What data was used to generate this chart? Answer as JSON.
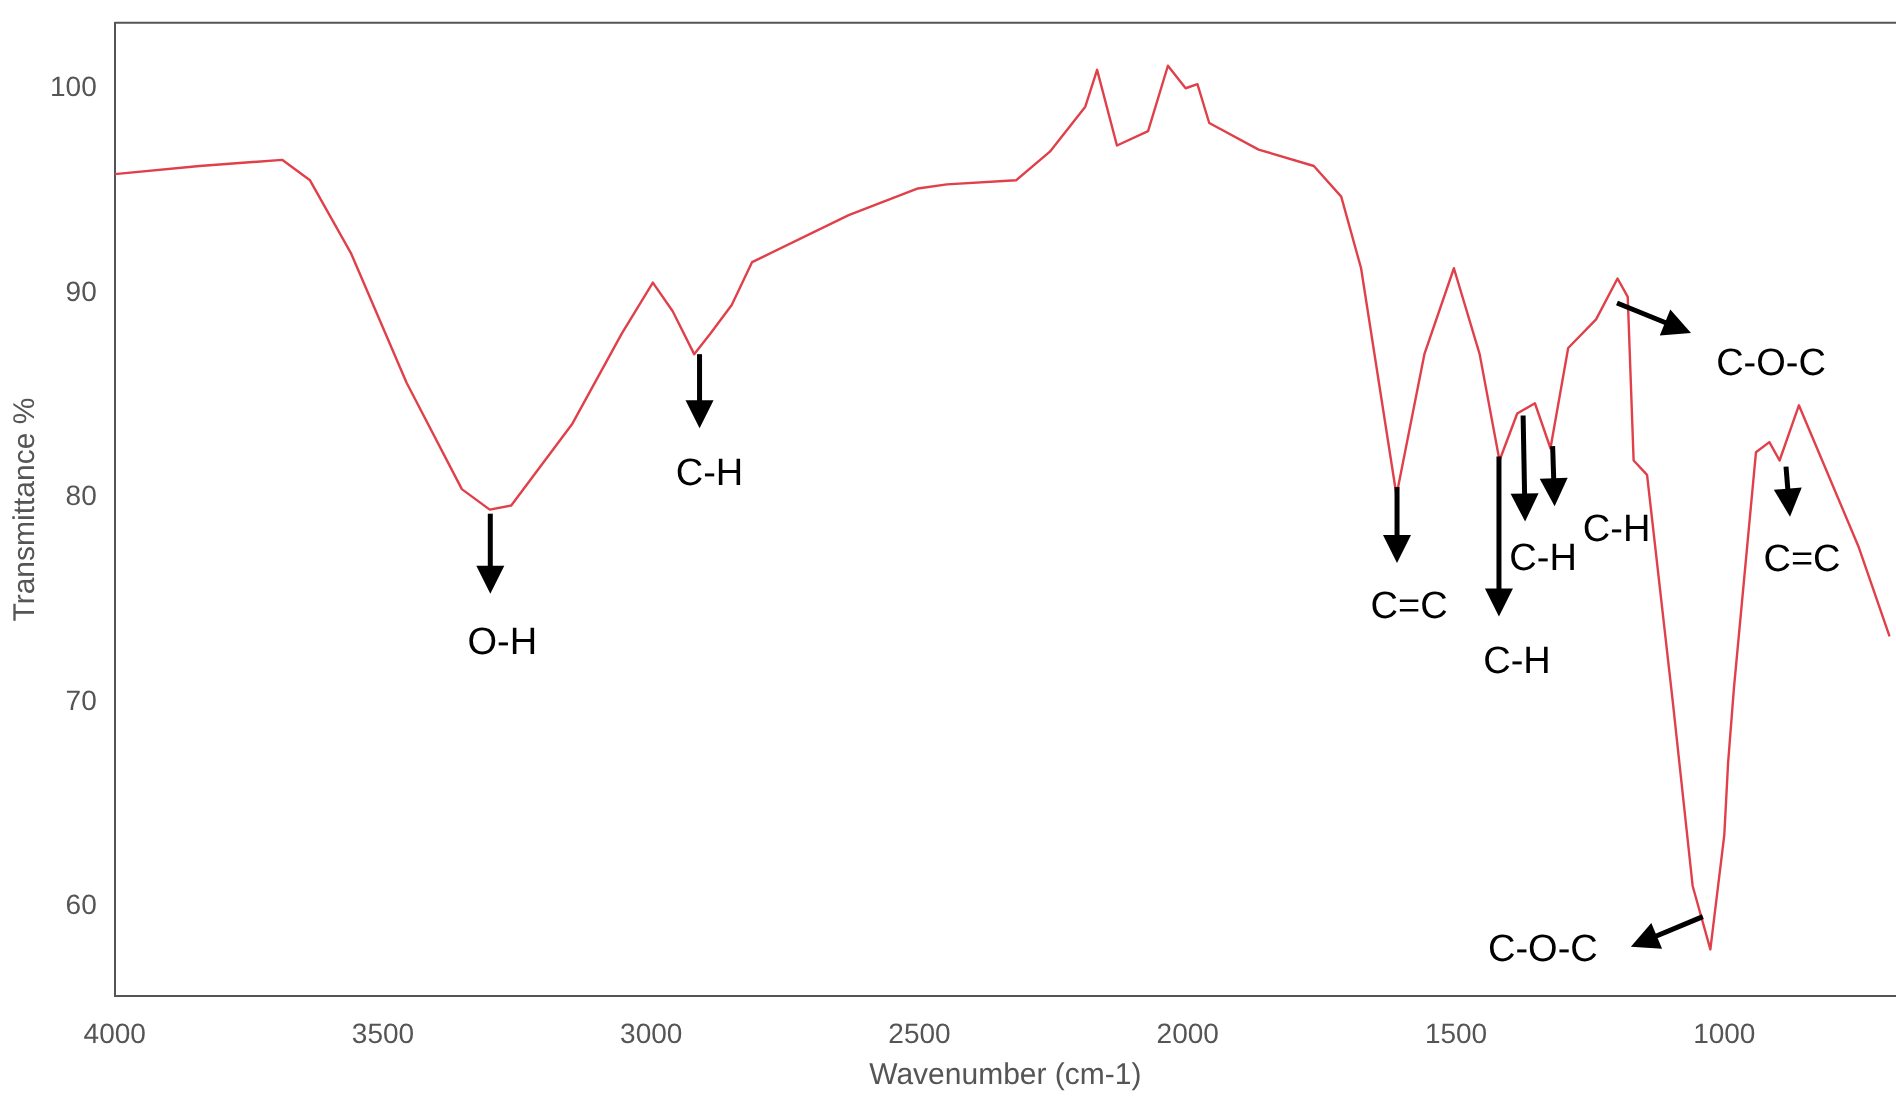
{
  "chart_data": {
    "type": "line",
    "xlabel": "Wavenumber (cm-1)",
    "ylabel": "Transmittance %",
    "xlim": [
      4000,
      680
    ],
    "ylim": [
      55.6,
      103.2
    ],
    "xticks": [
      4000,
      3500,
      3000,
      2500,
      2000,
      1500,
      1000
    ],
    "yticks": [
      60,
      70,
      80,
      90,
      100
    ],
    "grid": false,
    "legend": false,
    "marker": "none",
    "line_style": "solid",
    "series": [
      {
        "color": "#e0404a",
        "x": [
          4000,
          3842,
          3688,
          3636,
          3559,
          3456,
          3353,
          3301,
          3261,
          3147,
          3055,
          2997,
          2960,
          2920,
          2890,
          2850,
          2812,
          2632,
          2503,
          2449,
          2320,
          2257,
          2191,
          2169,
          2132,
          2074,
          2037,
          2004,
          1982,
          1960,
          1868,
          1765,
          1714,
          1677,
          1611,
          1559,
          1504,
          1456,
          1419,
          1386,
          1353,
          1324,
          1291,
          1239,
          1199,
          1180,
          1169,
          1144,
          1096,
          1059,
          1026,
          1000,
          993,
          982,
          941,
          916,
          897,
          861,
          750,
          692
        ],
        "values": [
          95.8,
          96.2,
          96.5,
          95.5,
          91.9,
          85.6,
          80.4,
          79.4,
          79.6,
          83.6,
          88.0,
          90.5,
          89.1,
          87.0,
          88.0,
          89.4,
          91.5,
          93.8,
          95.1,
          95.3,
          95.5,
          96.9,
          99.1,
          100.9,
          97.2,
          97.9,
          101.1,
          100.0,
          100.2,
          98.3,
          97.0,
          96.2,
          94.7,
          91.2,
          80.1,
          87.0,
          91.2,
          87.0,
          81.8,
          84.1,
          84.6,
          82.4,
          87.3,
          88.7,
          90.7,
          89.8,
          81.8,
          81.1,
          70.0,
          61.0,
          57.9,
          63.5,
          67.0,
          70.7,
          82.2,
          82.7,
          81.8,
          84.5,
          77.6,
          73.2
        ]
      }
    ],
    "annotations": [
      {
        "text": "O-H",
        "x": 3300,
        "y": 79.2
      },
      {
        "text": "C-H",
        "x": 2910,
        "y": 87
      },
      {
        "text": "C=C",
        "x": 1610,
        "y": 80.5
      },
      {
        "text": "C-H",
        "x": 1420,
        "y": 82
      },
      {
        "text": "C-H",
        "x": 1375,
        "y": 84
      },
      {
        "text": "C-H",
        "x": 1320,
        "y": 82.5
      },
      {
        "text": "C-O-C",
        "x": 1200,
        "y": 89.5
      },
      {
        "text": "C=C",
        "x": 885,
        "y": 81.5
      },
      {
        "text": "C-O-C",
        "x": 1040,
        "y": 59.5
      }
    ]
  }
}
